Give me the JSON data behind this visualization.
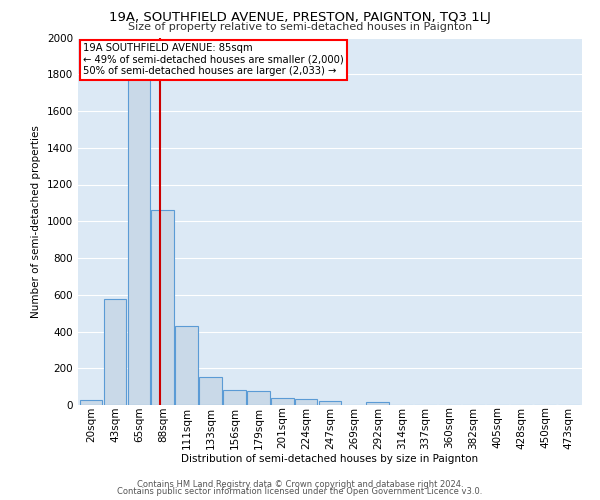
{
  "title": "19A, SOUTHFIELD AVENUE, PRESTON, PAIGNTON, TQ3 1LJ",
  "subtitle": "Size of property relative to semi-detached houses in Paignton",
  "xlabel": "Distribution of semi-detached houses by size in Paignton",
  "ylabel_full": "Number of semi-detached properties",
  "bin_labels": [
    "20sqm",
    "43sqm",
    "65sqm",
    "88sqm",
    "111sqm",
    "133sqm",
    "156sqm",
    "179sqm",
    "201sqm",
    "224sqm",
    "247sqm",
    "269sqm",
    "292sqm",
    "314sqm",
    "337sqm",
    "360sqm",
    "382sqm",
    "405sqm",
    "428sqm",
    "450sqm",
    "473sqm"
  ],
  "bar_values": [
    25,
    575,
    1870,
    1060,
    430,
    155,
    80,
    75,
    40,
    35,
    20,
    0,
    15,
    0,
    0,
    0,
    0,
    0,
    0,
    0,
    0
  ],
  "bar_color": "#c9d9e8",
  "bar_edge_color": "#5b9bd5",
  "background_color": "#dce9f5",
  "grid_color": "#ffffff",
  "property_line_color": "#cc0000",
  "annotation_text": "19A SOUTHFIELD AVENUE: 85sqm\n← 49% of semi-detached houses are smaller (2,000)\n50% of semi-detached houses are larger (2,033) →",
  "ylim": [
    0,
    2000
  ],
  "yticks": [
    0,
    200,
    400,
    600,
    800,
    1000,
    1200,
    1400,
    1600,
    1800,
    2000
  ],
  "footnote1": "Contains HM Land Registry data © Crown copyright and database right 2024.",
  "footnote2": "Contains public sector information licensed under the Open Government Licence v3.0."
}
